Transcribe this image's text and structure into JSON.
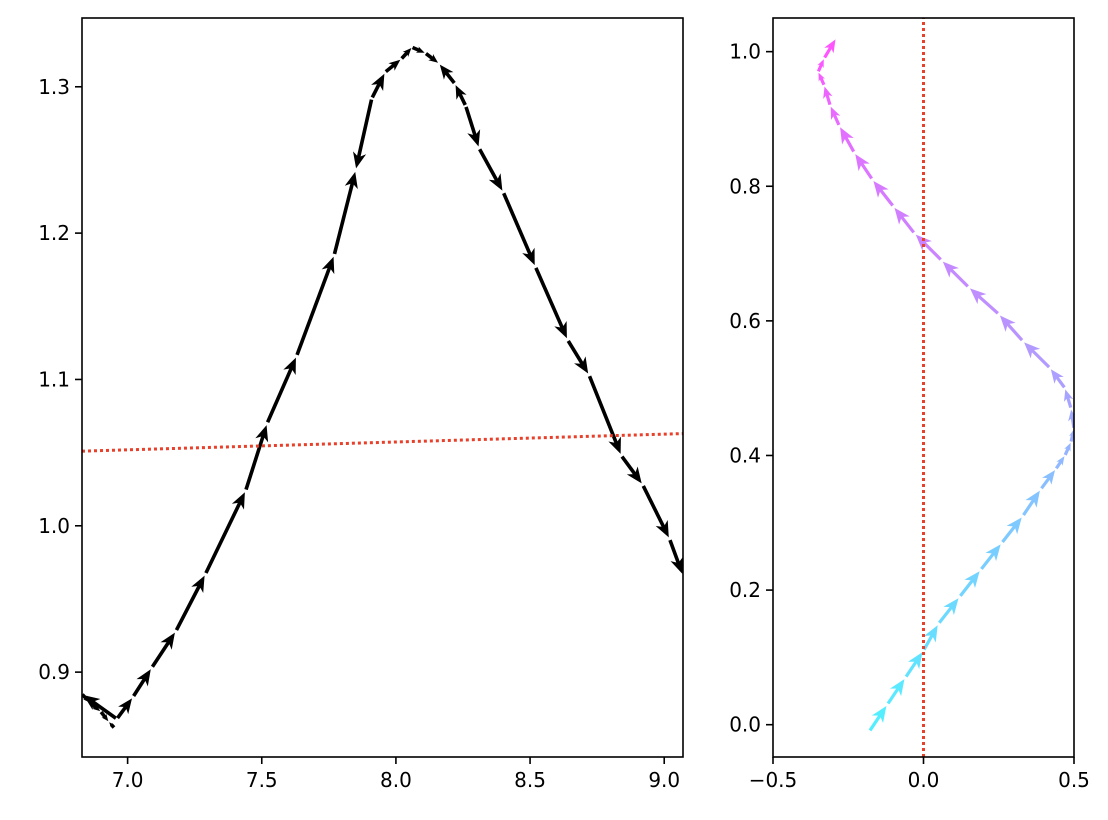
{
  "chart_data": [
    {
      "type": "quiver",
      "title": "",
      "xlabel": "",
      "ylabel": "",
      "xlim": [
        6.83,
        9.07
      ],
      "ylim": [
        0.842,
        1.347
      ],
      "grid": false,
      "xticks": [
        "7.0",
        "7.5",
        "8.0",
        "8.5",
        "9.0"
      ],
      "yticks": [
        "0.9",
        "1.0",
        "1.1",
        "1.2",
        "1.3"
      ],
      "arrow_color": "#000000",
      "reference_line": {
        "style": "dotted",
        "color": "#e8402a",
        "points": [
          [
            6.83,
            1.051
          ],
          [
            9.07,
            1.063
          ]
        ]
      },
      "path": [
        [
          6.95,
          0.862
        ],
        [
          6.93,
          0.866
        ],
        [
          6.9,
          0.873
        ],
        [
          6.86,
          0.879
        ],
        [
          6.83,
          0.885
        ],
        [
          6.96,
          0.868
        ],
        [
          7.02,
          0.883
        ],
        [
          7.09,
          0.903
        ],
        [
          7.18,
          0.928
        ],
        [
          7.29,
          0.967
        ],
        [
          7.44,
          1.024
        ],
        [
          7.52,
          1.07
        ],
        [
          7.63,
          1.116
        ],
        [
          7.77,
          1.185
        ],
        [
          7.85,
          1.243
        ],
        [
          7.91,
          1.292
        ],
        [
          7.96,
          1.31
        ],
        [
          8.02,
          1.319
        ],
        [
          8.06,
          1.327
        ],
        [
          8.11,
          1.323
        ],
        [
          8.16,
          1.316
        ],
        [
          8.22,
          1.302
        ],
        [
          8.26,
          1.287
        ],
        [
          8.31,
          1.258
        ],
        [
          8.4,
          1.228
        ],
        [
          8.52,
          1.177
        ],
        [
          8.64,
          1.127
        ],
        [
          8.72,
          1.103
        ],
        [
          8.84,
          1.048
        ],
        [
          8.92,
          1.028
        ],
        [
          9.02,
          0.991
        ],
        [
          9.07,
          0.966
        ]
      ],
      "arrow_directions": [
        "right",
        "left",
        "left",
        "left",
        "left",
        "up",
        "up",
        "up",
        "up",
        "up",
        "up",
        "up",
        "up",
        "up",
        "down",
        "up",
        "up",
        "up",
        "up",
        "right",
        "down",
        "down",
        "up",
        "up",
        "up",
        "up",
        "up",
        "up",
        "up",
        "up",
        "up",
        "down"
      ]
    },
    {
      "type": "quiver",
      "title": "",
      "xlabel": "",
      "ylabel": "",
      "xlim": [
        -0.5,
        0.5
      ],
      "ylim": [
        -0.048,
        1.05
      ],
      "grid": false,
      "xticks": [
        "−0.5",
        "0.0",
        "0.5"
      ],
      "yticks": [
        "0.0",
        "0.2",
        "0.4",
        "0.6",
        "0.8",
        "1.0"
      ],
      "colormap": "cool",
      "reference_line": {
        "style": "dotted",
        "color": "#e8402a",
        "points": [
          [
            0.0,
            -0.048
          ],
          [
            0.0,
            1.05
          ]
        ]
      },
      "path": [
        [
          -0.18,
          -0.01
        ],
        [
          -0.12,
          0.03
        ],
        [
          -0.06,
          0.07
        ],
        [
          0.0,
          0.11
        ],
        [
          0.05,
          0.15
        ],
        [
          0.12,
          0.19
        ],
        [
          0.19,
          0.23
        ],
        [
          0.26,
          0.27
        ],
        [
          0.33,
          0.31
        ],
        [
          0.39,
          0.35
        ],
        [
          0.44,
          0.38
        ],
        [
          0.47,
          0.4
        ],
        [
          0.49,
          0.42
        ],
        [
          0.5,
          0.44
        ],
        [
          0.49,
          0.47
        ],
        [
          0.47,
          0.5
        ],
        [
          0.42,
          0.53
        ],
        [
          0.33,
          0.57
        ],
        [
          0.25,
          0.61
        ],
        [
          0.15,
          0.65
        ],
        [
          0.06,
          0.69
        ],
        [
          -0.03,
          0.73
        ],
        [
          -0.1,
          0.77
        ],
        [
          -0.17,
          0.81
        ],
        [
          -0.23,
          0.85
        ],
        [
          -0.28,
          0.89
        ],
        [
          -0.31,
          0.92
        ],
        [
          -0.33,
          0.95
        ],
        [
          -0.35,
          0.97
        ],
        [
          -0.33,
          0.99
        ],
        [
          -0.29,
          1.02
        ]
      ]
    }
  ]
}
